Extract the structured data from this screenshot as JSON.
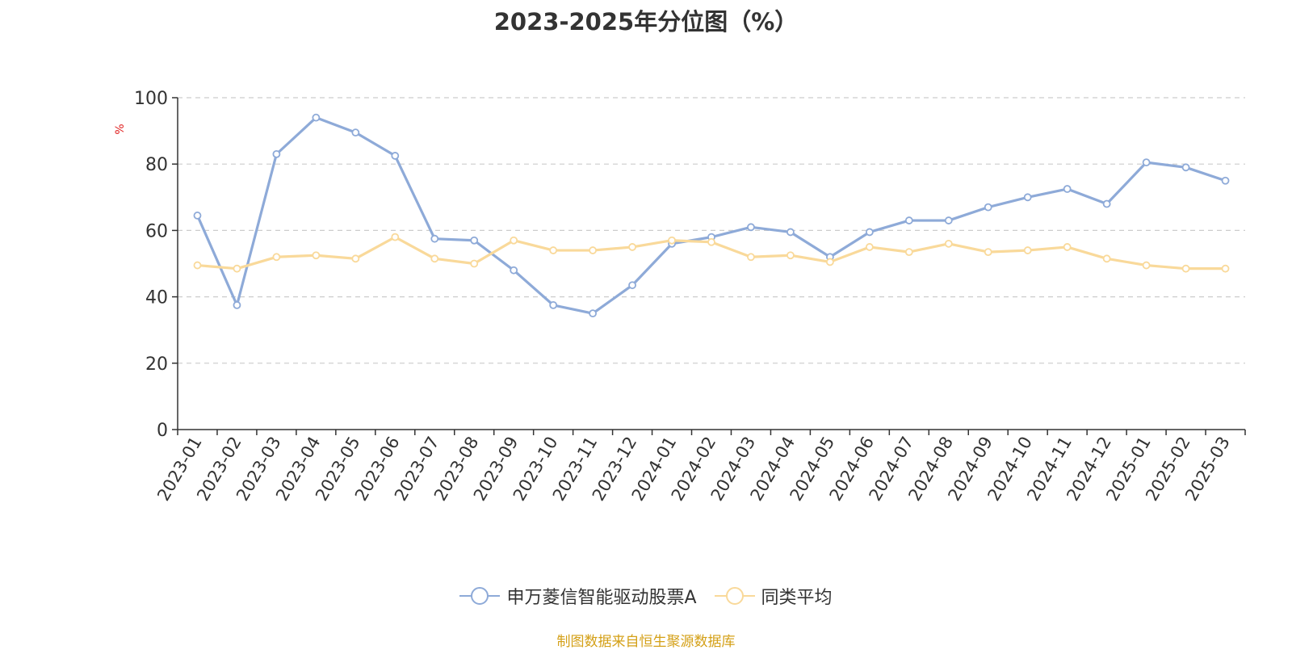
{
  "chart_data": {
    "type": "line",
    "title": "2023-2025年分位图（%）",
    "ylabel": "%",
    "xlabel": "",
    "ylim": [
      0,
      100
    ],
    "yticks": [
      0,
      20,
      40,
      60,
      80,
      100
    ],
    "grid": true,
    "legend_position": "bottom",
    "categories": [
      "2023-01",
      "2023-02",
      "2023-03",
      "2023-04",
      "2023-05",
      "2023-06",
      "2023-07",
      "2023-08",
      "2023-09",
      "2023-10",
      "2023-11",
      "2023-12",
      "2024-01",
      "2024-02",
      "2024-03",
      "2024-04",
      "2024-05",
      "2024-06",
      "2024-07",
      "2024-08",
      "2024-09",
      "2024-10",
      "2024-11",
      "2024-12",
      "2025-01",
      "2025-02",
      "2025-03"
    ],
    "series": [
      {
        "name": "申万菱信智能驱动股票A",
        "color": "#8eaad8",
        "values": [
          64.5,
          37.5,
          83,
          94,
          89.5,
          82.5,
          57.5,
          57,
          48,
          37.5,
          35,
          43.5,
          56,
          58,
          61,
          59.5,
          52,
          59.5,
          63,
          63,
          67,
          70,
          72.5,
          68,
          80.5,
          79,
          75
        ]
      },
      {
        "name": "同类平均",
        "color": "#f9d99a",
        "values": [
          49.5,
          48.5,
          52,
          52.5,
          51.5,
          58,
          51.5,
          50,
          57,
          54,
          54,
          55,
          57,
          56.5,
          52,
          52.5,
          50.5,
          55,
          53.5,
          56,
          53.5,
          54,
          55,
          51.5,
          49.5,
          48.5,
          48.5
        ]
      }
    ]
  },
  "footer": {
    "source": "制图数据来自恒生聚源数据库"
  },
  "colors": {
    "axis": "#333333",
    "grid": "#cccccc",
    "ylabel": "#e02020",
    "source": "#d4a017"
  }
}
